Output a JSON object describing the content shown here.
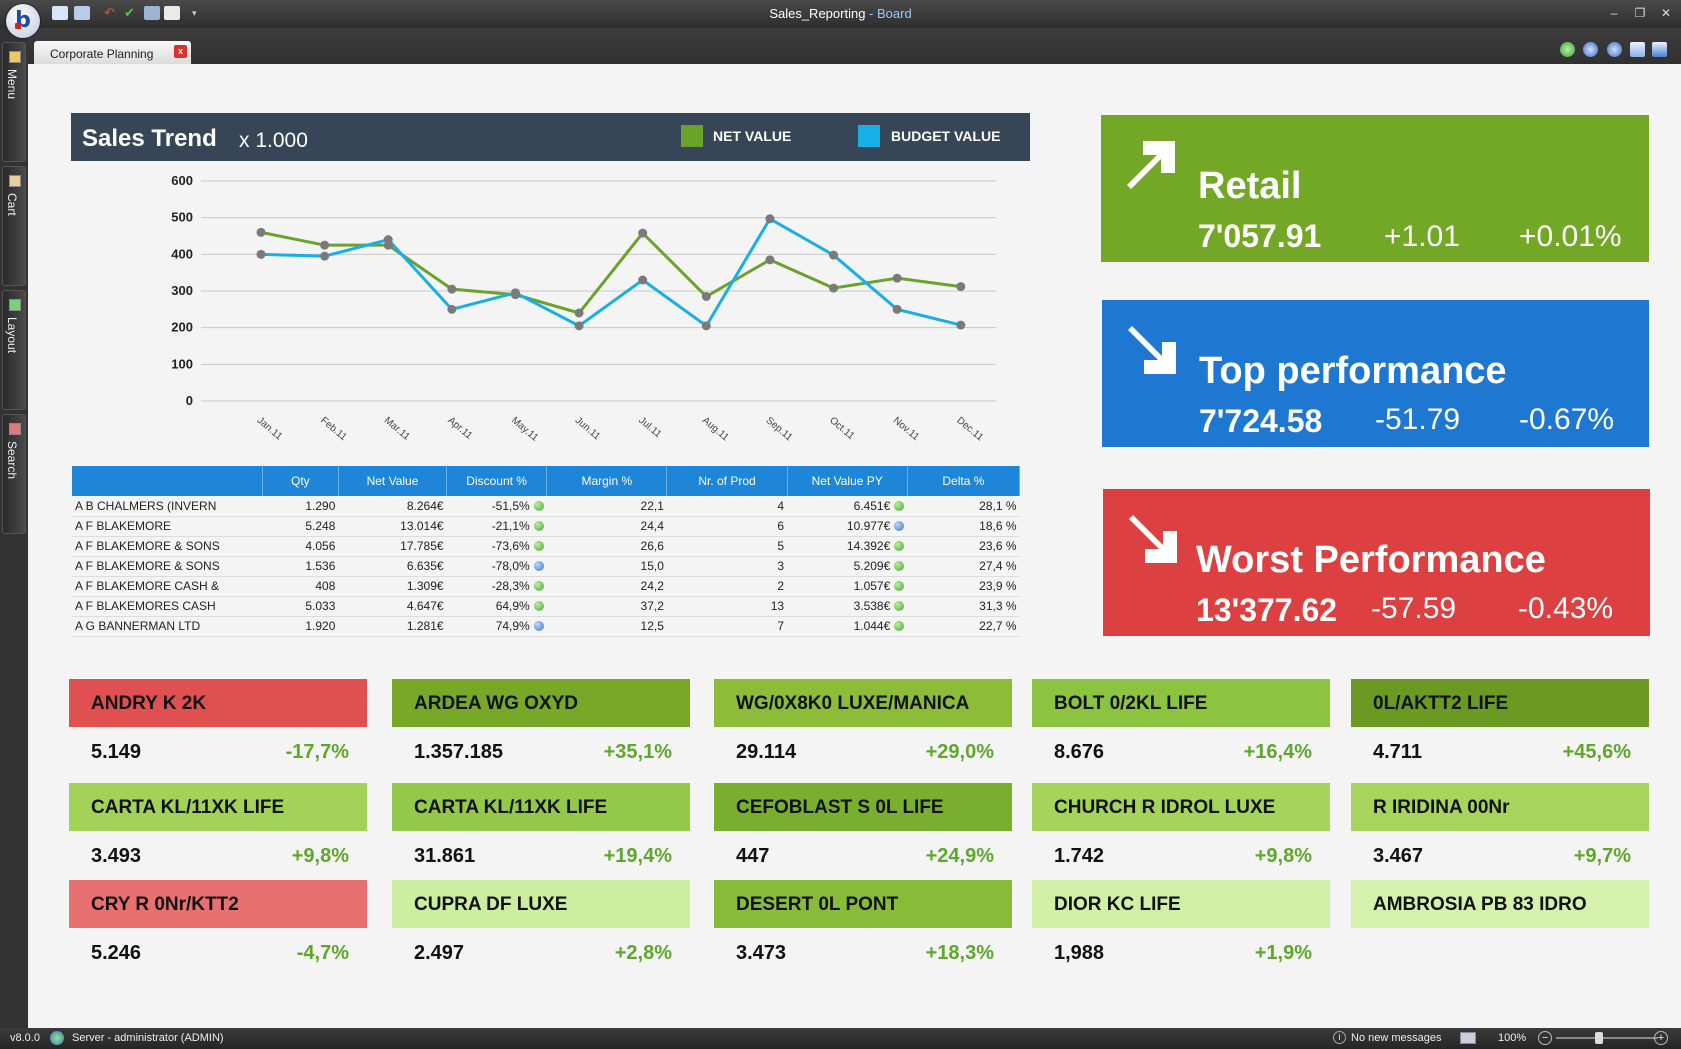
{
  "window": {
    "title": "Sales_Reporting",
    "app_name": " - Board",
    "minimize": "–",
    "restore": "❐",
    "close": "✕"
  },
  "tab": {
    "label": "Corporate Planning",
    "close": "x"
  },
  "left_rail": [
    {
      "label": "Menu",
      "color": "#f0c86a"
    },
    {
      "label": "Cart",
      "color": "#e8d0a0"
    },
    {
      "label": "Layout",
      "color": "#7bd07b"
    },
    {
      "label": "Search",
      "color": "#e07a7a"
    }
  ],
  "chart": {
    "title": "Sales Trend",
    "scale": "x 1.000",
    "legend": [
      {
        "name": "NET VALUE",
        "color": "#6aa22a"
      },
      {
        "name": "BUDGET VALUE",
        "color": "#18aee8"
      }
    ]
  },
  "chart_data": {
    "type": "line",
    "title": "Sales Trend",
    "subtitle": "x 1.000",
    "categories": [
      "Jan.11",
      "Feb.11",
      "Mar.11",
      "Apr.11",
      "May.11",
      "Jun.11",
      "Jul.11",
      "Aug.11",
      "Sep.11",
      "Oct.11",
      "Nov.11",
      "Dec.11"
    ],
    "series": [
      {
        "name": "NET VALUE",
        "color": "#6aa22a",
        "values": [
          460,
          425,
          425,
          305,
          290,
          240,
          458,
          285,
          385,
          308,
          335,
          312
        ]
      },
      {
        "name": "BUDGET VALUE",
        "color": "#18aee8",
        "values": [
          400,
          395,
          440,
          250,
          295,
          205,
          330,
          205,
          497,
          398,
          250,
          207
        ]
      }
    ],
    "yticks": [
      0,
      100,
      200,
      300,
      400,
      500,
      600
    ],
    "ylim": [
      0,
      600
    ],
    "grid": true,
    "legend": "top"
  },
  "table": {
    "columns": [
      "",
      "Qty",
      "Net Value",
      "Discount %",
      "Margin %",
      "Nr. of Prod",
      "Net Value PY",
      "Delta %"
    ],
    "rows": [
      {
        "name": "A B CHALMERS (INVERN",
        "qty": "1.290",
        "net": "8.264€",
        "disc": "-51,5%",
        "disc_dot": "g",
        "margin": "22,1",
        "nprod": "4",
        "netpy": "6.451€",
        "py_dot": "g",
        "delta": "28,1 %"
      },
      {
        "name": "A F BLAKEMORE",
        "qty": "5.248",
        "net": "13.014€",
        "disc": "-21,1%",
        "disc_dot": "g",
        "margin": "24,4",
        "nprod": "6",
        "netpy": "10.977€",
        "py_dot": "b",
        "delta": "18,6 %"
      },
      {
        "name": "A F BLAKEMORE & SONS",
        "qty": "4.056",
        "net": "17.785€",
        "disc": "-73,6%",
        "disc_dot": "g",
        "margin": "26,6",
        "nprod": "5",
        "netpy": "14.392€",
        "py_dot": "g",
        "delta": "23,6 %"
      },
      {
        "name": "A F BLAKEMORE & SONS",
        "qty": "1.536",
        "net": "6.635€",
        "disc": "-78,0%",
        "disc_dot": "b",
        "margin": "15,0",
        "nprod": "3",
        "netpy": "5.209€",
        "py_dot": "g",
        "delta": "27,4 %"
      },
      {
        "name": "A F BLAKEMORE CASH &",
        "qty": "408",
        "net": "1.309€",
        "disc": "-28,3%",
        "disc_dot": "g",
        "margin": "24,2",
        "nprod": "2",
        "netpy": "1.057€",
        "py_dot": "g",
        "delta": "23,9 %"
      },
      {
        "name": "A F BLAKEMORES CASH",
        "qty": "5.033",
        "net": "4.647€",
        "disc": "64,9%",
        "disc_dot": "g",
        "margin": "37,2",
        "nprod": "13",
        "netpy": "3.538€",
        "py_dot": "g",
        "delta": "31,3 %"
      },
      {
        "name": "A G BANNERMAN LTD",
        "qty": "1.920",
        "net": "1.281€",
        "disc": "74,9%",
        "disc_dot": "b",
        "margin": "12,5",
        "nprod": "7",
        "netpy": "1.044€",
        "py_dot": "g",
        "delta": "22,7 %"
      }
    ]
  },
  "kpis": [
    {
      "title": "Retail",
      "value": "7'057.91",
      "delta": "+1.01",
      "pct": "+0.01%",
      "color": "#72a826",
      "direction": "up"
    },
    {
      "title": "Top performance",
      "value": "7'724.58",
      "delta": "-51.79",
      "pct": "-0.67%",
      "color": "#1e78d2",
      "direction": "down"
    },
    {
      "title": "Worst Performance",
      "value": "13'377.62",
      "delta": "-57.59",
      "pct": "-0.43%",
      "color": "#dc4040",
      "direction": "down"
    }
  ],
  "tiles": [
    {
      "name": "ANDRY K 2K",
      "value": "5.149",
      "pct": "-17,7%",
      "color": "#e05050"
    },
    {
      "name": "ARDEA WG OXYD",
      "value": "1.357.185",
      "pct": "+35,1%",
      "color": "#78a828"
    },
    {
      "name": "WG/0X8K0 LUXE/MANICA",
      "value": "29.114",
      "pct": "+29,0%",
      "color": "#8cbc38"
    },
    {
      "name": "BOLT 0/2KL LIFE",
      "value": "8.676",
      "pct": "+16,4%",
      "color": "#8cc440"
    },
    {
      "name": "0L/AKTT2 LIFE",
      "value": "4.711",
      "pct": "+45,6%",
      "color": "#6a9a22"
    },
    {
      "name": "CARTA KL/11XK LIFE",
      "value": "3.493",
      "pct": "+9,8%",
      "color": "#a2d258"
    },
    {
      "name": "CARTA KL/11XK LIFE",
      "value": "31.861",
      "pct": "+19,4%",
      "color": "#94c84a"
    },
    {
      "name": "CEFOBLAST S 0L LIFE",
      "value": "447",
      "pct": "+24,9%",
      "color": "#7aae2e"
    },
    {
      "name": "CHURCH R IDROL LUXE",
      "value": "1.742",
      "pct": "+9,8%",
      "color": "#a4d45a"
    },
    {
      "name": "R IRIDINA 00Nr",
      "value": "3.467",
      "pct": "+9,7%",
      "color": "#a6d45c"
    },
    {
      "name": "CRY R 0Nr/KTT2",
      "value": "5.246",
      "pct": "-4,7%",
      "color": "#e87070"
    },
    {
      "name": "CUPRA DF LUXE",
      "value": "2.497",
      "pct": "+2,8%",
      "color": "#cceea0"
    },
    {
      "name": "DESERT 0L PONT",
      "value": "3.473",
      "pct": "+18,3%",
      "color": "#88bc38"
    },
    {
      "name": "DIOR KC LIFE",
      "value": "1,988",
      "pct": "+1,9%",
      "color": "#d0f0a8"
    },
    {
      "name": "AMBROSIA PB 83 IDRO",
      "value": "",
      "pct": "",
      "color": "#d4f2ac"
    }
  ],
  "status": {
    "version": "v8.0.0",
    "server": "Server - administrator (ADMIN)",
    "messages": "No new messages",
    "zoom": "100%"
  }
}
